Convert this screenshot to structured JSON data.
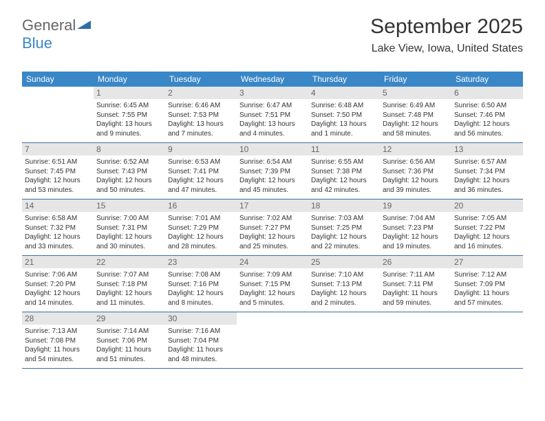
{
  "brand": {
    "part1": "General",
    "part2": "Blue"
  },
  "header": {
    "month_year": "September 2025",
    "location": "Lake View, Iowa, United States"
  },
  "colors": {
    "header_bar": "#3a87c7",
    "week_border": "#3a6ea5",
    "daynum_bg": "#e6e6e6",
    "daynum_fg": "#666666",
    "text": "#333333",
    "white": "#ffffff"
  },
  "day_names": [
    "Sunday",
    "Monday",
    "Tuesday",
    "Wednesday",
    "Thursday",
    "Friday",
    "Saturday"
  ],
  "weeks": [
    [
      {
        "day": "",
        "sunrise": "",
        "sunset": "",
        "daylight": ""
      },
      {
        "day": "1",
        "sunrise": "6:45 AM",
        "sunset": "7:55 PM",
        "daylight": "13 hours and 9 minutes."
      },
      {
        "day": "2",
        "sunrise": "6:46 AM",
        "sunset": "7:53 PM",
        "daylight": "13 hours and 7 minutes."
      },
      {
        "day": "3",
        "sunrise": "6:47 AM",
        "sunset": "7:51 PM",
        "daylight": "13 hours and 4 minutes."
      },
      {
        "day": "4",
        "sunrise": "6:48 AM",
        "sunset": "7:50 PM",
        "daylight": "13 hours and 1 minute."
      },
      {
        "day": "5",
        "sunrise": "6:49 AM",
        "sunset": "7:48 PM",
        "daylight": "12 hours and 58 minutes."
      },
      {
        "day": "6",
        "sunrise": "6:50 AM",
        "sunset": "7:46 PM",
        "daylight": "12 hours and 56 minutes."
      }
    ],
    [
      {
        "day": "7",
        "sunrise": "6:51 AM",
        "sunset": "7:45 PM",
        "daylight": "12 hours and 53 minutes."
      },
      {
        "day": "8",
        "sunrise": "6:52 AM",
        "sunset": "7:43 PM",
        "daylight": "12 hours and 50 minutes."
      },
      {
        "day": "9",
        "sunrise": "6:53 AM",
        "sunset": "7:41 PM",
        "daylight": "12 hours and 47 minutes."
      },
      {
        "day": "10",
        "sunrise": "6:54 AM",
        "sunset": "7:39 PM",
        "daylight": "12 hours and 45 minutes."
      },
      {
        "day": "11",
        "sunrise": "6:55 AM",
        "sunset": "7:38 PM",
        "daylight": "12 hours and 42 minutes."
      },
      {
        "day": "12",
        "sunrise": "6:56 AM",
        "sunset": "7:36 PM",
        "daylight": "12 hours and 39 minutes."
      },
      {
        "day": "13",
        "sunrise": "6:57 AM",
        "sunset": "7:34 PM",
        "daylight": "12 hours and 36 minutes."
      }
    ],
    [
      {
        "day": "14",
        "sunrise": "6:58 AM",
        "sunset": "7:32 PM",
        "daylight": "12 hours and 33 minutes."
      },
      {
        "day": "15",
        "sunrise": "7:00 AM",
        "sunset": "7:31 PM",
        "daylight": "12 hours and 30 minutes."
      },
      {
        "day": "16",
        "sunrise": "7:01 AM",
        "sunset": "7:29 PM",
        "daylight": "12 hours and 28 minutes."
      },
      {
        "day": "17",
        "sunrise": "7:02 AM",
        "sunset": "7:27 PM",
        "daylight": "12 hours and 25 minutes."
      },
      {
        "day": "18",
        "sunrise": "7:03 AM",
        "sunset": "7:25 PM",
        "daylight": "12 hours and 22 minutes."
      },
      {
        "day": "19",
        "sunrise": "7:04 AM",
        "sunset": "7:23 PM",
        "daylight": "12 hours and 19 minutes."
      },
      {
        "day": "20",
        "sunrise": "7:05 AM",
        "sunset": "7:22 PM",
        "daylight": "12 hours and 16 minutes."
      }
    ],
    [
      {
        "day": "21",
        "sunrise": "7:06 AM",
        "sunset": "7:20 PM",
        "daylight": "12 hours and 14 minutes."
      },
      {
        "day": "22",
        "sunrise": "7:07 AM",
        "sunset": "7:18 PM",
        "daylight": "12 hours and 11 minutes."
      },
      {
        "day": "23",
        "sunrise": "7:08 AM",
        "sunset": "7:16 PM",
        "daylight": "12 hours and 8 minutes."
      },
      {
        "day": "24",
        "sunrise": "7:09 AM",
        "sunset": "7:15 PM",
        "daylight": "12 hours and 5 minutes."
      },
      {
        "day": "25",
        "sunrise": "7:10 AM",
        "sunset": "7:13 PM",
        "daylight": "12 hours and 2 minutes."
      },
      {
        "day": "26",
        "sunrise": "7:11 AM",
        "sunset": "7:11 PM",
        "daylight": "11 hours and 59 minutes."
      },
      {
        "day": "27",
        "sunrise": "7:12 AM",
        "sunset": "7:09 PM",
        "daylight": "11 hours and 57 minutes."
      }
    ],
    [
      {
        "day": "28",
        "sunrise": "7:13 AM",
        "sunset": "7:08 PM",
        "daylight": "11 hours and 54 minutes."
      },
      {
        "day": "29",
        "sunrise": "7:14 AM",
        "sunset": "7:06 PM",
        "daylight": "11 hours and 51 minutes."
      },
      {
        "day": "30",
        "sunrise": "7:16 AM",
        "sunset": "7:04 PM",
        "daylight": "11 hours and 48 minutes."
      },
      {
        "day": "",
        "sunrise": "",
        "sunset": "",
        "daylight": ""
      },
      {
        "day": "",
        "sunrise": "",
        "sunset": "",
        "daylight": ""
      },
      {
        "day": "",
        "sunrise": "",
        "sunset": "",
        "daylight": ""
      },
      {
        "day": "",
        "sunrise": "",
        "sunset": "",
        "daylight": ""
      }
    ]
  ],
  "labels": {
    "sunrise": "Sunrise:",
    "sunset": "Sunset:",
    "daylight": "Daylight:"
  }
}
